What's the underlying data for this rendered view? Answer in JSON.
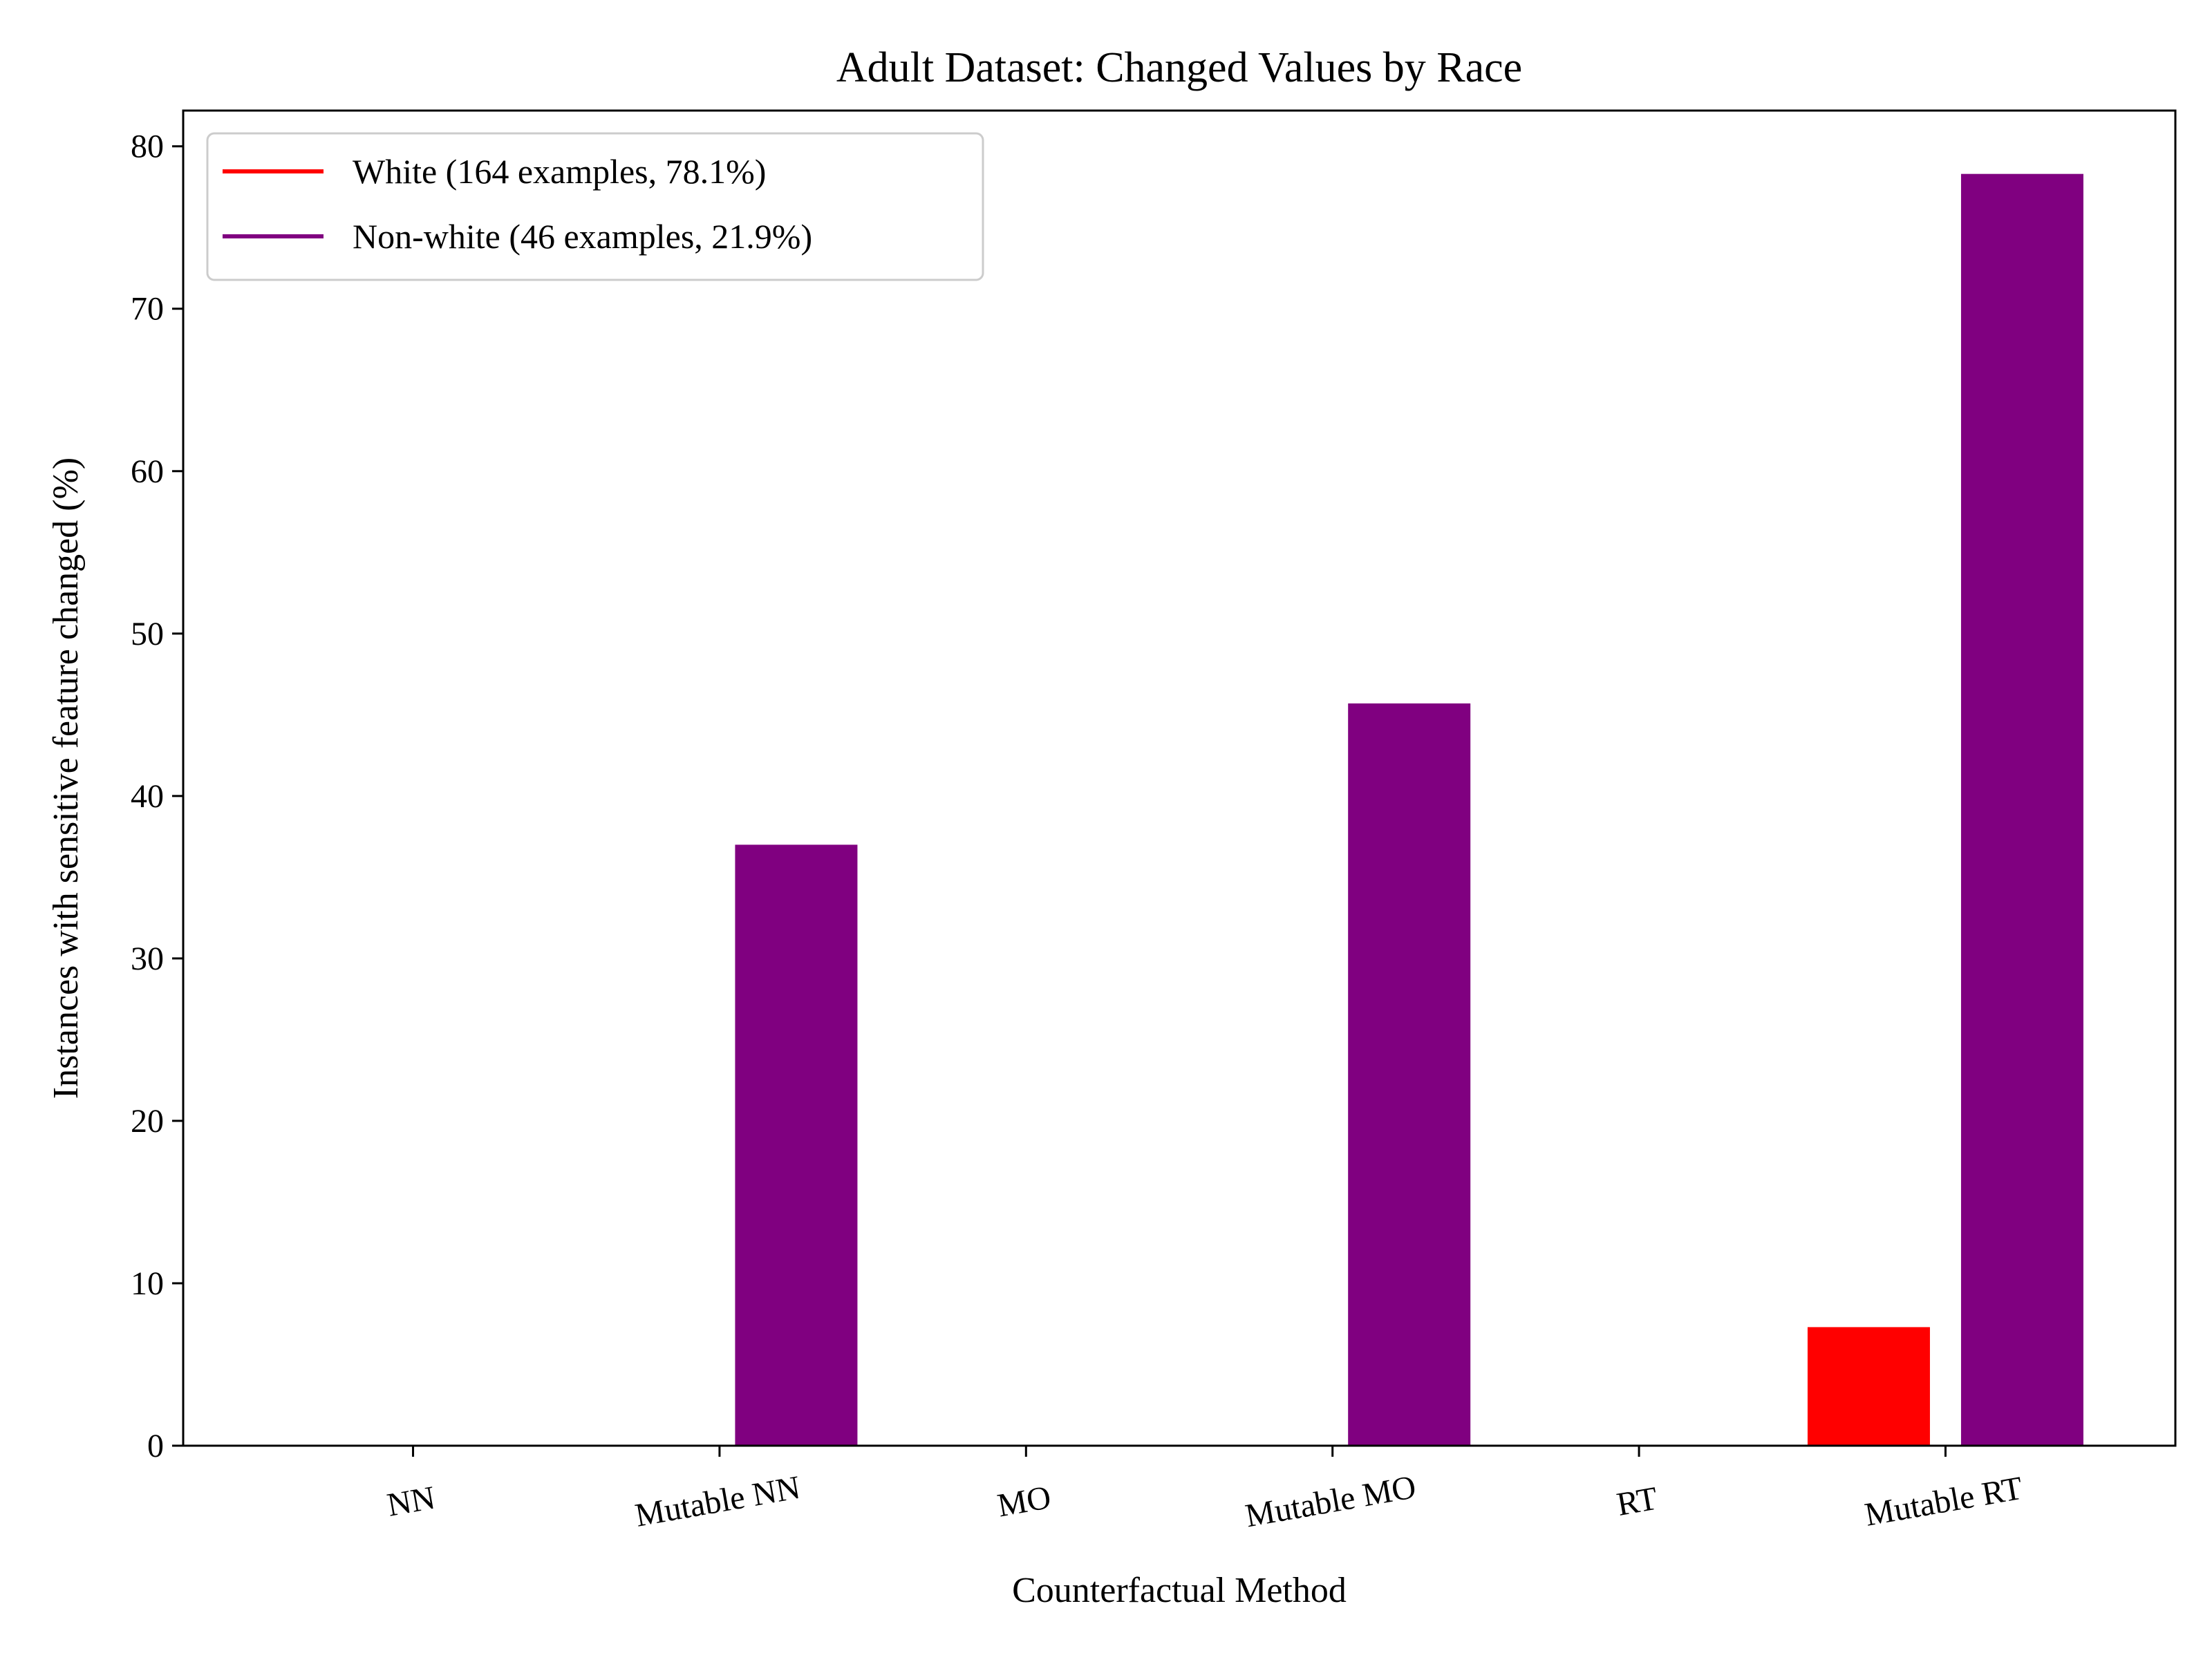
{
  "chart_data": {
    "type": "bar",
    "title": "Adult Dataset: Changed Values by Race",
    "xlabel": "Counterfactual Method",
    "ylabel": "Instances with sensitive feature changed (%)",
    "categories": [
      "NN",
      "Mutable NN",
      "MO",
      "Mutable MO",
      "RT",
      "Mutable RT"
    ],
    "series": [
      {
        "name": "White (164 examples, 78.1%)",
        "color": "#ff0000",
        "values": [
          0,
          0,
          0,
          0,
          0,
          7.3
        ]
      },
      {
        "name": "Non-white (46 examples, 21.9%)",
        "color": "#800080",
        "values": [
          0,
          37.0,
          0,
          45.7,
          0,
          78.3
        ]
      }
    ],
    "ylim": [
      0,
      82.2
    ],
    "yticks": [
      0,
      10,
      20,
      30,
      40,
      50,
      60,
      70,
      80
    ],
    "grid": false,
    "legend_position": "top-left"
  }
}
